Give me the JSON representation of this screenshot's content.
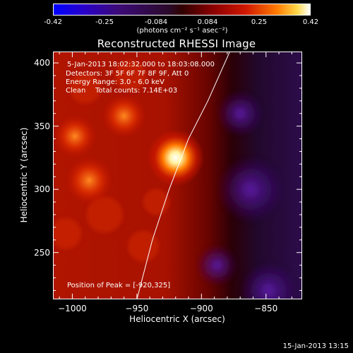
{
  "colorbar": {
    "ticks": [
      "-0.42",
      "-0.25",
      "-0.084",
      "0.084",
      "0.25",
      "0.42"
    ],
    "units": "(photons cm⁻² s⁻¹ asec⁻²)"
  },
  "colors": {
    "low": "#0000ff",
    "zero": "#300000",
    "mid": "#d01800",
    "high": "#ffffff",
    "limb_line": "#ffffff"
  },
  "chart_data": {
    "type": "heatmap",
    "title": "Reconstructed RHESSI Image",
    "xlabel": "Heliocentric X (arcsec)",
    "ylabel": "Heliocentric Y (arcsec)",
    "xlim": [
      -1015,
      -822
    ],
    "ylim": [
      213,
      409
    ],
    "x_ticks": [
      -1000,
      -950,
      -900,
      -850
    ],
    "y_ticks": [
      250,
      300,
      350,
      400
    ],
    "zlim": [
      -0.42,
      0.42
    ],
    "colorscale": "rhessi red-temperature (blue negative, white peak)",
    "sources": [
      {
        "x": -920,
        "y": 325,
        "peak": 0.42
      },
      {
        "x": -987,
        "y": 307,
        "peak": 0.25
      },
      {
        "x": -960,
        "y": 358,
        "peak": 0.18
      },
      {
        "x": -998,
        "y": 342,
        "peak": 0.15
      }
    ],
    "limb": [
      [
        -950,
        213
      ],
      [
        -938,
        260
      ],
      [
        -925,
        300
      ],
      [
        -910,
        340
      ],
      [
        -895,
        370
      ],
      [
        -878,
        409
      ]
    ],
    "annotations": {
      "time_range": "5-Jan-2013 18:02:32.000 to 18:03:08.000",
      "detectors": "Detectors: 3F 5F 6F 7F 8F 9F, Att 0",
      "energy": "Energy Range: 3.0 - 6.0 keV",
      "method": "Clean",
      "counts": "Total counts: 7.14E+03",
      "peak": "Position of Peak = [-920,325]"
    }
  },
  "timestamp": "15-Jan-2013 13:15"
}
